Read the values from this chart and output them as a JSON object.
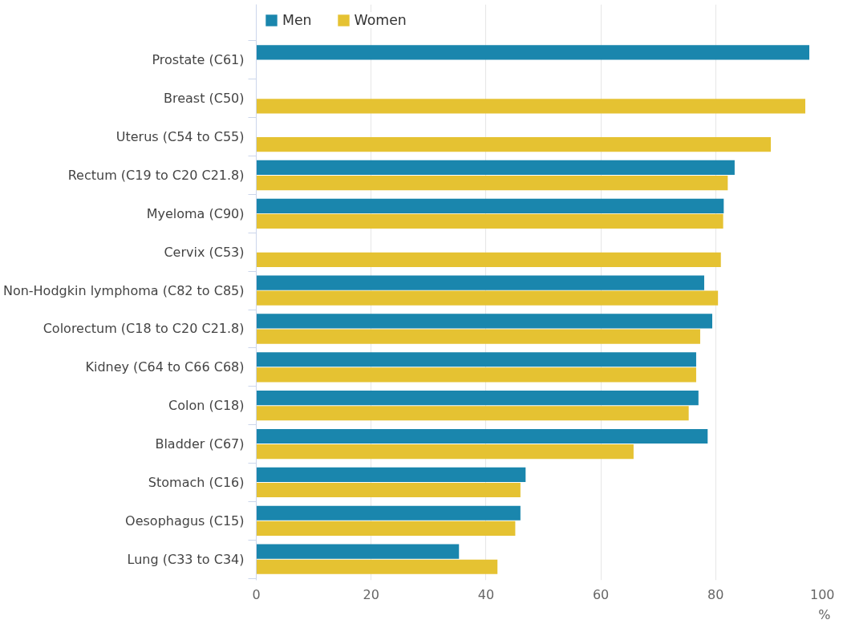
{
  "chart_data": {
    "type": "bar",
    "orientation": "horizontal",
    "xlabel": "%",
    "categories": [
      "Prostate (C61)",
      "Breast (C50)",
      "Uterus (C54 to C55)",
      "Rectum (C19 to C20 C21.8)",
      "Myeloma (C90)",
      "Cervix (C53)",
      "Non-Hodgkin lymphoma (C82 to C85)",
      "Colorectum (C18 to C20 C21.8)",
      "Kidney (C64 to C66 C68)",
      "Colon (C18)",
      "Bladder (C67)",
      "Stomach (C16)",
      "Oesophagus (C15)",
      "Lung (C33 to C34)"
    ],
    "series": [
      {
        "name": "Men",
        "color": "#1a86ad",
        "values": [
          96.3,
          null,
          null,
          83.3,
          81.4,
          null,
          78.0,
          79.4,
          76.6,
          77.0,
          78.6,
          46.9,
          46.0,
          35.3
        ]
      },
      {
        "name": "Women",
        "color": "#e5c232",
        "values": [
          null,
          95.6,
          89.6,
          82.1,
          81.3,
          80.9,
          80.4,
          77.3,
          76.6,
          75.3,
          65.7,
          46.0,
          45.1,
          42.0
        ]
      }
    ],
    "xlim": [
      0,
      100
    ],
    "xticks": [
      0,
      20,
      40,
      60,
      80,
      100
    ],
    "grid": "x",
    "legend": "top left"
  }
}
